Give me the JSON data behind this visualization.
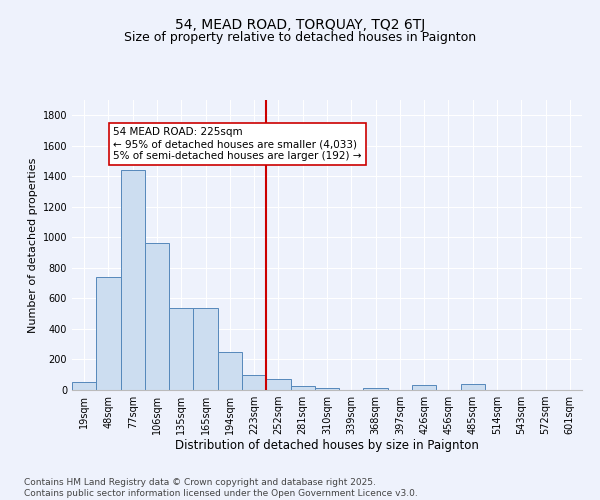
{
  "title": "54, MEAD ROAD, TORQUAY, TQ2 6TJ",
  "subtitle": "Size of property relative to detached houses in Paignton",
  "xlabel": "Distribution of detached houses by size in Paignton",
  "ylabel": "Number of detached properties",
  "categories": [
    "19sqm",
    "48sqm",
    "77sqm",
    "106sqm",
    "135sqm",
    "165sqm",
    "194sqm",
    "223sqm",
    "252sqm",
    "281sqm",
    "310sqm",
    "339sqm",
    "368sqm",
    "397sqm",
    "426sqm",
    "456sqm",
    "485sqm",
    "514sqm",
    "543sqm",
    "572sqm",
    "601sqm"
  ],
  "values": [
    50,
    740,
    1440,
    960,
    540,
    540,
    250,
    100,
    75,
    25,
    15,
    0,
    10,
    0,
    30,
    0,
    40,
    0,
    0,
    0,
    0
  ],
  "bar_color": "#ccddf0",
  "bar_edge_color": "#5588bb",
  "vline_x": 7.5,
  "vline_color": "#cc0000",
  "annotation_text": "54 MEAD ROAD: 225sqm\n← 95% of detached houses are smaller (4,033)\n5% of semi-detached houses are larger (192) →",
  "annotation_box_color": "#ffffff",
  "annotation_box_edge": "#cc0000",
  "ylim": [
    0,
    1900
  ],
  "yticks": [
    0,
    200,
    400,
    600,
    800,
    1000,
    1200,
    1400,
    1600,
    1800
  ],
  "bg_color": "#eef2fc",
  "grid_color": "#ffffff",
  "footnote": "Contains HM Land Registry data © Crown copyright and database right 2025.\nContains public sector information licensed under the Open Government Licence v3.0.",
  "title_fontsize": 10,
  "subtitle_fontsize": 9,
  "xlabel_fontsize": 8.5,
  "ylabel_fontsize": 8,
  "tick_fontsize": 7,
  "annot_fontsize": 7.5,
  "footnote_fontsize": 6.5
}
